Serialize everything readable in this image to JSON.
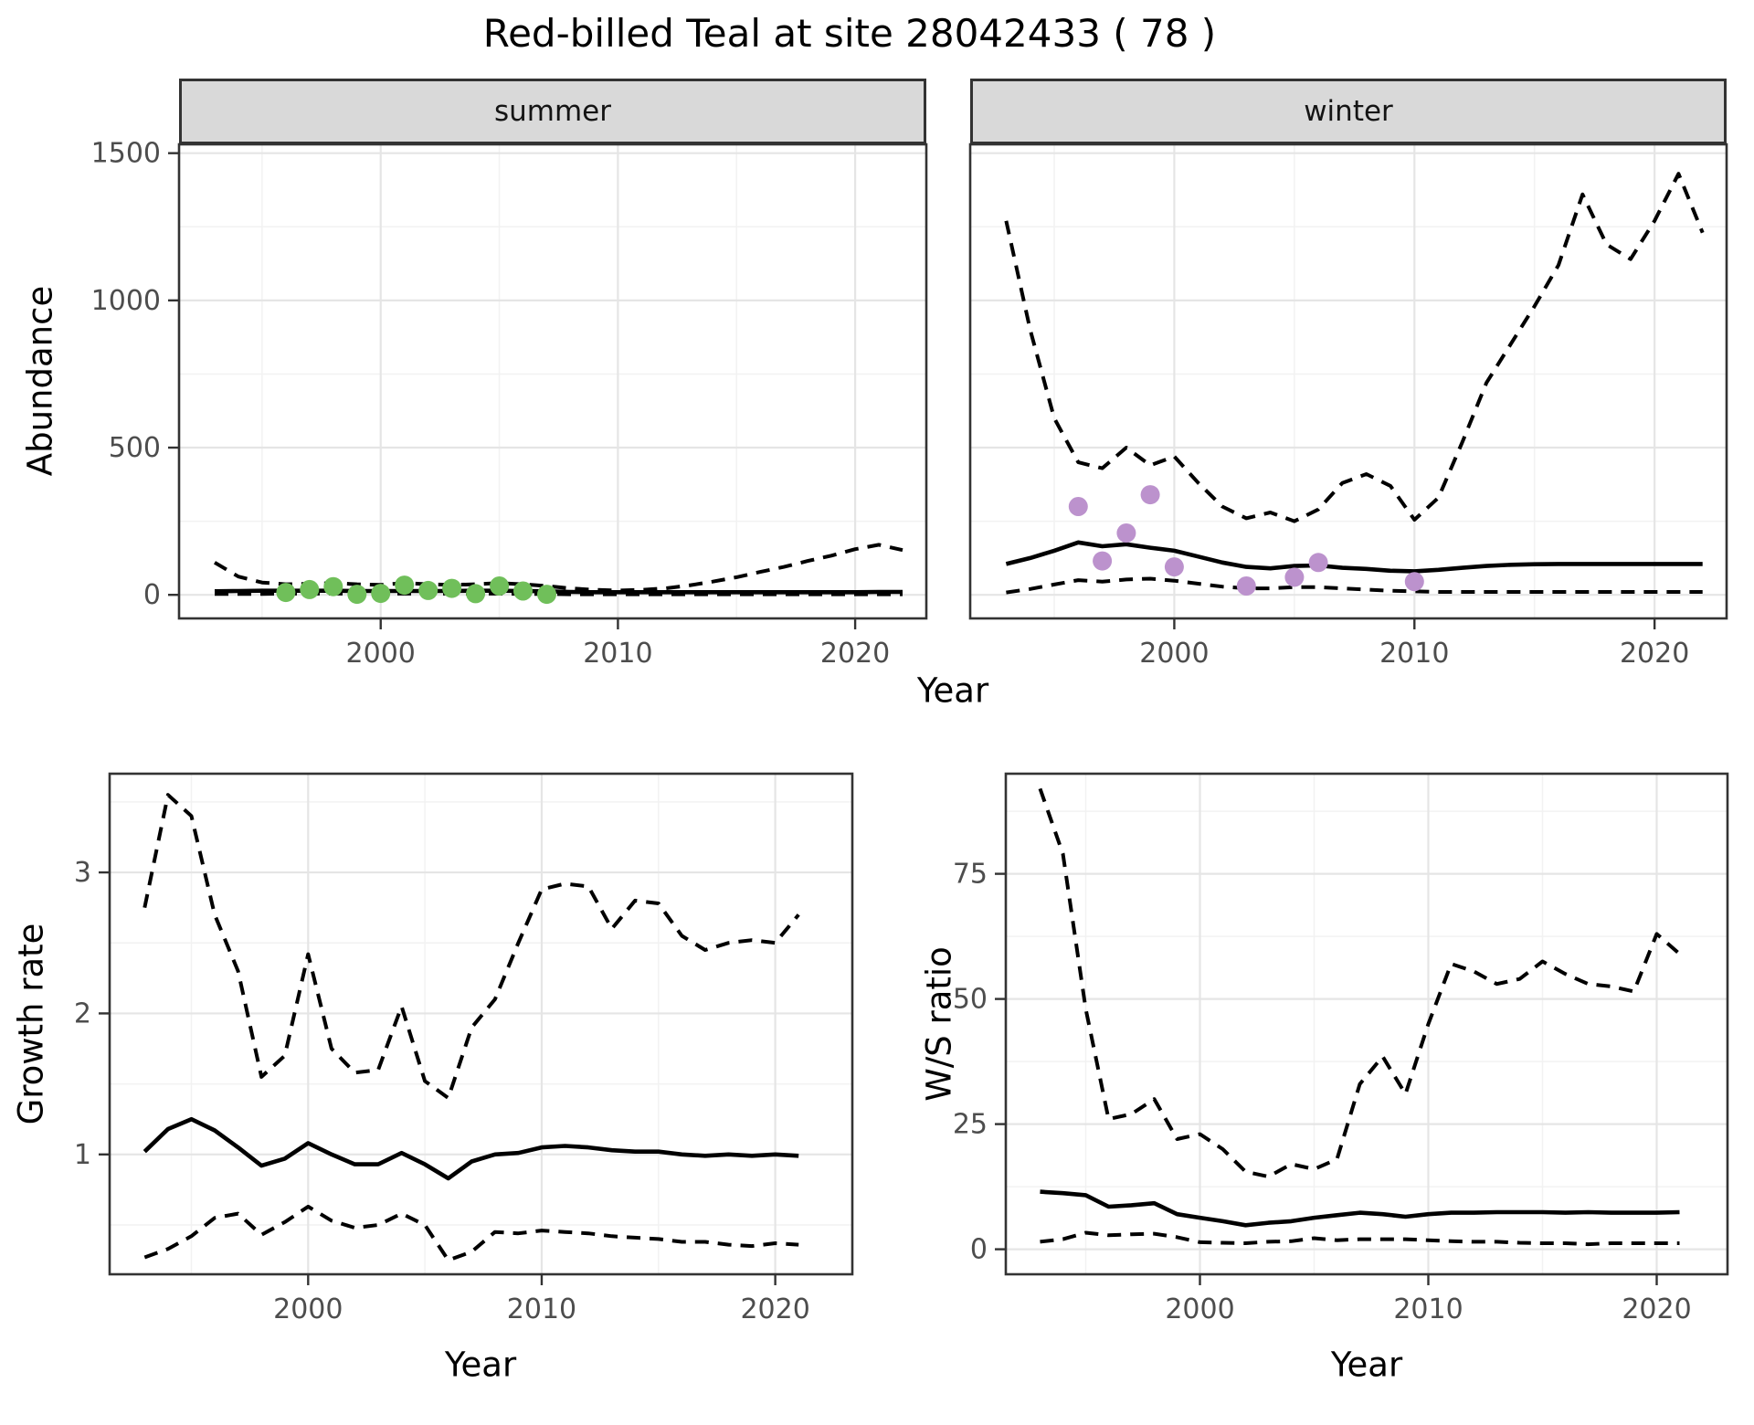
{
  "title": "Red-billed Teal at site 28042433 ( 78 )",
  "colors": {
    "line": "#000000",
    "summer_points": "#70bf5a",
    "winter_points": "#bc92cd",
    "strip_bg": "#d9d9d9",
    "grid_major": "#e5e5e5",
    "grid_minor": "#f2f2f2",
    "panel_border": "#333333",
    "axis_text": "#4d4d4d"
  },
  "chart_data": [
    {
      "id": "abundance-summer",
      "type": "line",
      "facet": "summer",
      "xlabel": "Year",
      "ylabel": "Abundance",
      "xlim": [
        1991.5,
        2023
      ],
      "ylim": [
        -80,
        1530
      ],
      "xticks": [
        2000,
        2010,
        2020
      ],
      "yticks": [
        0,
        500,
        1000,
        1500
      ],
      "grid": true,
      "legend": "none",
      "x": [
        1993,
        1994,
        1995,
        1996,
        1997,
        1998,
        1999,
        2000,
        2001,
        2002,
        2003,
        2004,
        2005,
        2006,
        2007,
        2008,
        2009,
        2010,
        2011,
        2012,
        2013,
        2014,
        2015,
        2016,
        2017,
        2018,
        2019,
        2020,
        2021,
        2022
      ],
      "series": [
        {
          "name": "lower-ci",
          "style": "dashed",
          "values": [
            3,
            3,
            3,
            4,
            4,
            4,
            4,
            4,
            4,
            4,
            4,
            4,
            4,
            3,
            3,
            2,
            2,
            2,
            2,
            2,
            2,
            2,
            2,
            2,
            2,
            2,
            2,
            2,
            2,
            2
          ]
        },
        {
          "name": "upper-ci",
          "style": "dashed",
          "values": [
            110,
            62,
            42,
            36,
            38,
            40,
            36,
            34,
            40,
            36,
            34,
            36,
            40,
            36,
            30,
            22,
            17,
            15,
            17,
            22,
            32,
            45,
            60,
            78,
            95,
            115,
            133,
            155,
            170,
            152
          ]
        },
        {
          "name": "estimate",
          "style": "solid",
          "values": [
            12,
            13,
            14,
            14,
            14,
            14,
            13,
            13,
            13,
            13,
            13,
            14,
            14,
            13,
            12,
            10,
            9,
            9,
            9,
            9,
            9,
            9,
            9,
            9,
            9,
            9,
            9,
            9,
            10,
            10
          ]
        }
      ],
      "points": {
        "name": "observed-summer",
        "color": "#70bf5a",
        "x": [
          1996,
          1997,
          1998,
          1999,
          2000,
          2001,
          2002,
          2003,
          2004,
          2005,
          2006,
          2007
        ],
        "y": [
          8,
          18,
          28,
          2,
          5,
          33,
          15,
          22,
          4,
          30,
          13,
          2
        ]
      }
    },
    {
      "id": "abundance-winter",
      "type": "line",
      "facet": "winter",
      "xlabel": "Year",
      "ylabel": "Abundance",
      "xlim": [
        1991.5,
        2023
      ],
      "ylim": [
        -80,
        1530
      ],
      "xticks": [
        2000,
        2010,
        2020
      ],
      "yticks": [
        0,
        500,
        1000,
        1500
      ],
      "grid": true,
      "legend": "none",
      "x": [
        1993,
        1994,
        1995,
        1996,
        1997,
        1998,
        1999,
        2000,
        2001,
        2002,
        2003,
        2004,
        2005,
        2006,
        2007,
        2008,
        2009,
        2010,
        2011,
        2012,
        2013,
        2014,
        2015,
        2016,
        2017,
        2018,
        2019,
        2020,
        2021,
        2022
      ],
      "series": [
        {
          "name": "lower-ci",
          "style": "dashed",
          "values": [
            8,
            20,
            35,
            50,
            45,
            52,
            55,
            48,
            38,
            28,
            22,
            22,
            26,
            26,
            22,
            18,
            14,
            12,
            10,
            10,
            10,
            10,
            10,
            10,
            10,
            10,
            10,
            10,
            10,
            10
          ]
        },
        {
          "name": "upper-ci",
          "style": "dashed",
          "values": [
            1270,
            900,
            600,
            450,
            430,
            500,
            440,
            470,
            380,
            300,
            260,
            280,
            250,
            290,
            380,
            410,
            370,
            255,
            330,
            520,
            720,
            850,
            980,
            1120,
            1360,
            1190,
            1140,
            1270,
            1430,
            1230
          ]
        },
        {
          "name": "estimate",
          "style": "solid",
          "values": [
            105,
            125,
            150,
            178,
            165,
            172,
            160,
            150,
            130,
            110,
            95,
            90,
            98,
            100,
            92,
            88,
            82,
            80,
            85,
            92,
            98,
            102,
            104,
            105,
            105,
            105,
            105,
            105,
            105,
            105
          ]
        }
      ],
      "points": {
        "name": "observed-winter",
        "color": "#bc92cd",
        "x": [
          1996,
          1997,
          1998,
          1999,
          2000,
          2003,
          2005,
          2006,
          2010
        ],
        "y": [
          300,
          115,
          210,
          340,
          95,
          30,
          60,
          110,
          45
        ]
      }
    },
    {
      "id": "growth-rate",
      "type": "line",
      "xlabel": "Year",
      "ylabel": "Growth rate",
      "xlim": [
        1991.5,
        2023.3
      ],
      "ylim": [
        0.15,
        3.7
      ],
      "xticks": [
        2000,
        2010,
        2020
      ],
      "yticks": [
        1,
        2,
        3
      ],
      "grid": true,
      "legend": "none",
      "x": [
        1993,
        1994,
        1995,
        1996,
        1997,
        1998,
        1999,
        2000,
        2001,
        2002,
        2003,
        2004,
        2005,
        2006,
        2007,
        2008,
        2009,
        2010,
        2011,
        2012,
        2013,
        2014,
        2015,
        2016,
        2017,
        2018,
        2019,
        2020,
        2021
      ],
      "series": [
        {
          "name": "lower-ci",
          "style": "dashed",
          "values": [
            0.27,
            0.33,
            0.42,
            0.55,
            0.58,
            0.43,
            0.52,
            0.63,
            0.53,
            0.48,
            0.5,
            0.58,
            0.5,
            0.25,
            0.31,
            0.45,
            0.44,
            0.46,
            0.45,
            0.44,
            0.42,
            0.41,
            0.4,
            0.38,
            0.38,
            0.36,
            0.35,
            0.37,
            0.36
          ]
        },
        {
          "name": "upper-ci",
          "style": "dashed",
          "values": [
            2.75,
            3.55,
            3.4,
            2.7,
            2.3,
            1.55,
            1.7,
            2.42,
            1.75,
            1.58,
            1.6,
            2.05,
            1.52,
            1.4,
            1.9,
            2.1,
            2.5,
            2.88,
            2.92,
            2.9,
            2.6,
            2.8,
            2.78,
            2.55,
            2.45,
            2.5,
            2.52,
            2.5,
            2.7
          ]
        },
        {
          "name": "estimate",
          "style": "solid",
          "values": [
            1.02,
            1.18,
            1.25,
            1.17,
            1.05,
            0.92,
            0.97,
            1.08,
            1.0,
            0.93,
            0.93,
            1.01,
            0.93,
            0.83,
            0.95,
            1.0,
            1.01,
            1.05,
            1.06,
            1.05,
            1.03,
            1.02,
            1.02,
            1.0,
            0.99,
            1.0,
            0.99,
            1.0,
            0.99
          ]
        }
      ]
    },
    {
      "id": "ws-ratio",
      "type": "line",
      "xlabel": "Year",
      "ylabel": "W/S ratio",
      "xlim": [
        1991.5,
        2023.1
      ],
      "ylim": [
        -5,
        95
      ],
      "xticks": [
        2000,
        2010,
        2020
      ],
      "yticks": [
        0,
        25,
        50,
        75
      ],
      "grid": true,
      "legend": "none",
      "x": [
        1993,
        1994,
        1995,
        1996,
        1997,
        1998,
        1999,
        2000,
        2001,
        2002,
        2003,
        2004,
        2005,
        2006,
        2007,
        2008,
        2009,
        2010,
        2011,
        2012,
        2013,
        2014,
        2015,
        2016,
        2017,
        2018,
        2019,
        2020,
        2021
      ],
      "series": [
        {
          "name": "lower-ci",
          "style": "dashed",
          "values": [
            1.5,
            2.0,
            3.3,
            2.8,
            3.0,
            3.1,
            2.4,
            1.4,
            1.3,
            1.2,
            1.5,
            1.6,
            2.2,
            1.8,
            2.0,
            2.0,
            2.0,
            1.8,
            1.6,
            1.5,
            1.5,
            1.3,
            1.2,
            1.2,
            1.0,
            1.2,
            1.2,
            1.2,
            1.2
          ]
        },
        {
          "name": "upper-ci",
          "style": "dashed",
          "values": [
            92,
            79,
            48,
            26,
            27,
            30,
            22,
            23,
            20,
            15.5,
            14.5,
            17,
            16,
            18,
            33,
            38.5,
            31,
            45,
            57,
            55.5,
            53,
            54,
            57.5,
            55,
            53,
            52.5,
            51.5,
            63,
            59
          ]
        },
        {
          "name": "estimate",
          "style": "solid",
          "values": [
            11.5,
            11.2,
            10.8,
            8.5,
            8.8,
            9.2,
            7.0,
            6.3,
            5.6,
            4.8,
            5.3,
            5.6,
            6.3,
            6.8,
            7.3,
            7.0,
            6.5,
            7.0,
            7.3,
            7.3,
            7.4,
            7.4,
            7.4,
            7.3,
            7.4,
            7.3,
            7.3,
            7.3,
            7.4
          ]
        }
      ]
    }
  ]
}
